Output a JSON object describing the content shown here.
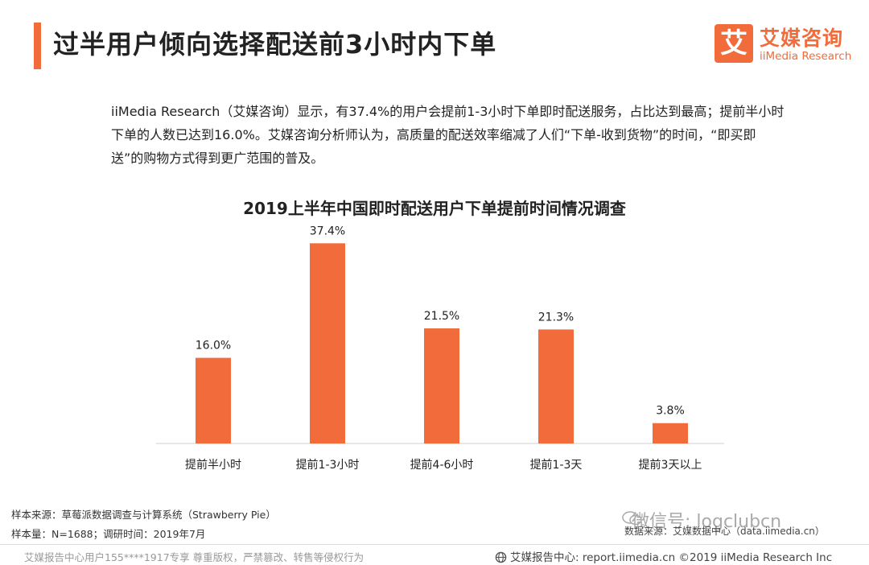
{
  "header": {
    "title": "过半用户倾向选择配送前3小时内下单",
    "logo_mark": "艾",
    "logo_cn": "艾媒咨询",
    "logo_en": "iiMedia Research"
  },
  "summary": "iiMedia Research（艾媒咨询）显示，有37.4%的用户会提前1-3小时下单即时配送服务，占比达到最高；提前半小时下单的人数已达到16.0%。艾媒咨询分析师认为，高质量的配送效率缩减了人们“下单-收到货物”的时间，“即买即送”的购物方式得到更广范围的普及。",
  "chart_data": {
    "type": "bar",
    "title": "2019上半年中国即时配送用户下单提前时间情况调查",
    "categories": [
      "提前半小时",
      "提前1-3小时",
      "提前4-6小时",
      "提前1-3天",
      "提前3天以上"
    ],
    "values": [
      16.0,
      37.4,
      21.5,
      21.3,
      3.8
    ],
    "value_labels": [
      "16.0%",
      "37.4%",
      "21.5%",
      "21.3%",
      "3.8%"
    ],
    "ylim": [
      0,
      40
    ],
    "grid": false,
    "bar_color": "#f26b3a"
  },
  "footer": {
    "sample_source": "样本来源：草莓派数据调查与计算系统（Strawberry Pie）",
    "sample_size": "样本量：N=1688；调研时间：2019年7月",
    "watermark": "微信号: logclubcn",
    "data_source": "数据来源：艾媒数据中心（data.iimedia.cn）"
  },
  "bottom": {
    "left": "艾媒报告中心用户155****1917专享 尊重版权，严禁篡改、转售等侵权行为",
    "right": "艾媒报告中心: report.iimedia.cn ©2019 iiMedia Research Inc"
  },
  "colors": {
    "accent": "#f26b3a"
  }
}
